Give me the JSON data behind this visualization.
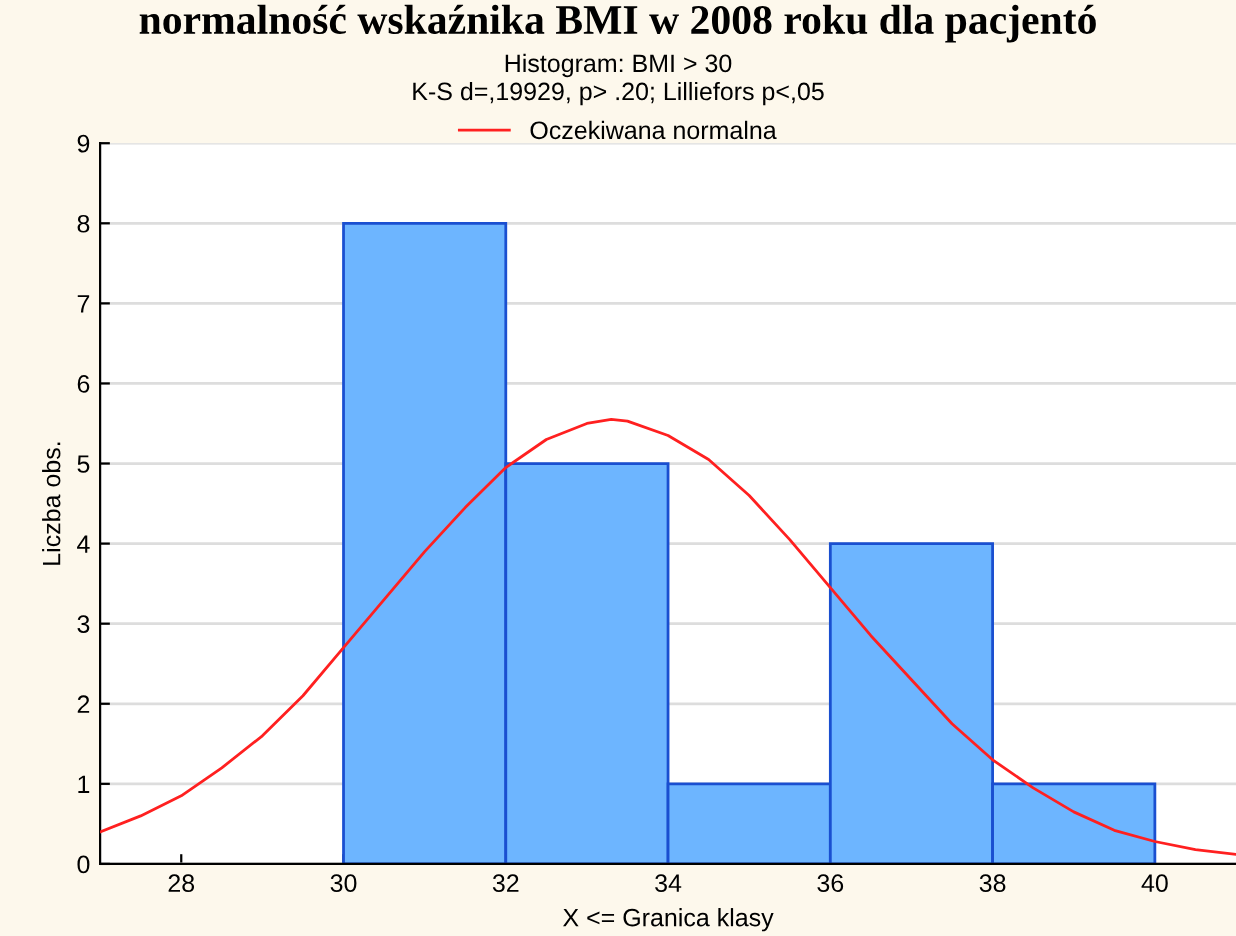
{
  "chart_data": {
    "type": "histogram",
    "title": "Histogram: BMI > 30",
    "subtitle": "K-S d=,19929, p> .20; Lilliefors p<,05",
    "annotations": [
      "normalność wskaźnika BMI w 2008 roku dla pacjentó"
    ],
    "xlabel": "X <= Granica klasy",
    "ylabel": "Liczba obs.",
    "series": [
      {
        "bins": [
          30,
          32,
          34,
          36,
          38,
          40
        ],
        "values": [
          8,
          5,
          1,
          4,
          1
        ],
        "color": "#6db5ff"
      },
      {
        "type": "line",
        "name": "Oczekiwana normalna",
        "color": "#ff2020",
        "x": [
          27,
          27.5,
          28,
          28.5,
          29,
          29.5,
          30,
          30.5,
          31,
          31.5,
          32,
          32.5,
          33,
          33.3,
          33.5,
          34,
          34.5,
          35,
          35.5,
          36,
          36.5,
          37,
          37.5,
          38,
          38.5,
          39,
          39.5,
          40,
          40.5,
          41
        ],
        "values": [
          0.4,
          0.6,
          0.85,
          1.2,
          1.6,
          2.1,
          2.7,
          3.3,
          3.9,
          4.45,
          4.95,
          5.3,
          5.5,
          5.55,
          5.53,
          5.35,
          5.05,
          4.6,
          4.05,
          3.45,
          2.85,
          2.3,
          1.75,
          1.3,
          0.95,
          0.65,
          0.42,
          0.28,
          0.18,
          0.12
        ]
      }
    ],
    "xlim": [
      27,
      41
    ],
    "xticks": [
      28,
      30,
      32,
      34,
      36,
      38,
      40
    ],
    "ylim": [
      0,
      9
    ],
    "yticks": [
      0,
      1,
      2,
      3,
      4,
      5,
      6,
      7,
      8,
      9
    ],
    "grid": "y",
    "legend": "top"
  }
}
